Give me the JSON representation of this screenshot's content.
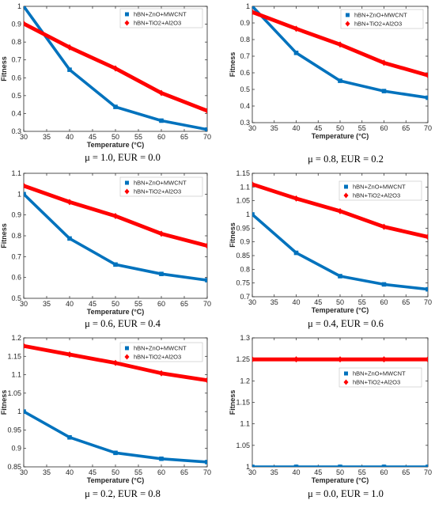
{
  "colors": {
    "series1": "#0072BD",
    "series2": "#FF0000",
    "axis": "#262626"
  },
  "chart_data": [
    {
      "type": "line",
      "caption": "μ = 1.0, EUR = 0.0",
      "xlabel": "Temperature (°C)",
      "ylabel": "Fitness",
      "xlim": [
        30,
        70
      ],
      "ylim": [
        0.3,
        1.0
      ],
      "xticks": [
        "30",
        "35",
        "40",
        "45",
        "50",
        "55",
        "60",
        "65",
        "70"
      ],
      "yticks": [
        "0.3",
        "0.4",
        "0.5",
        "0.6",
        "0.7",
        "0.8",
        "0.9",
        "1"
      ],
      "x": [
        30,
        40,
        50,
        60,
        70
      ],
      "series": [
        {
          "name": "hBN+ZnO+MWCNT",
          "values": [
            1.0,
            0.645,
            0.437,
            0.36,
            0.31
          ]
        },
        {
          "name": "hBN+TiO2+Al2O3",
          "values": [
            0.903,
            0.77,
            0.652,
            0.515,
            0.415
          ]
        }
      ],
      "legend": "top-right",
      "grid": false
    },
    {
      "type": "line",
      "caption": "μ = 0.8, EUR = 0.2",
      "xlabel": "Temperature (°C)",
      "ylabel": "Fitness",
      "xlim": [
        30,
        70
      ],
      "ylim": [
        0.3,
        1.0
      ],
      "xticks": [
        "30",
        "35",
        "40",
        "45",
        "50",
        "55",
        "60",
        "65",
        "70"
      ],
      "yticks": [
        "0.3",
        "0.4",
        "0.5",
        "0.6",
        "0.7",
        "0.8",
        "0.9",
        "1"
      ],
      "x": [
        30,
        40,
        50,
        60,
        70
      ],
      "series": [
        {
          "name": "hBN+ZnO+MWCNT",
          "values": [
            1.0,
            0.72,
            0.552,
            0.49,
            0.45
          ]
        },
        {
          "name": "hBN+TiO2+Al2O3",
          "values": [
            0.965,
            0.865,
            0.77,
            0.66,
            0.585
          ]
        }
      ],
      "legend": "top-right",
      "grid": false
    },
    {
      "type": "line",
      "caption": "μ = 0.6, EUR = 0.4",
      "xlabel": "Temperature (°C)",
      "ylabel": "Fitness",
      "xlim": [
        30,
        70
      ],
      "ylim": [
        0.5,
        1.1
      ],
      "xticks": [
        "30",
        "35",
        "40",
        "45",
        "50",
        "55",
        "60",
        "65",
        "70"
      ],
      "yticks": [
        "0.5",
        "0.6",
        "0.7",
        "0.8",
        "0.9",
        "1",
        "1.1"
      ],
      "x": [
        30,
        40,
        50,
        60,
        70
      ],
      "series": [
        {
          "name": "hBN+ZnO+MWCNT",
          "values": [
            1.0,
            0.787,
            0.662,
            0.617,
            0.587
          ]
        },
        {
          "name": "hBN+TiO2+Al2O3",
          "values": [
            1.04,
            0.962,
            0.895,
            0.81,
            0.752
          ]
        }
      ],
      "legend": "top-right",
      "grid": false
    },
    {
      "type": "line",
      "caption": "μ = 0.4, EUR = 0.6",
      "xlabel": "Temperature (°C)",
      "ylabel": "Fitness",
      "xlim": [
        30,
        70
      ],
      "ylim": [
        0.7,
        1.15
      ],
      "xticks": [
        "30",
        "35",
        "40",
        "45",
        "50",
        "55",
        "60",
        "65",
        "70"
      ],
      "yticks": [
        "0.7",
        "0.75",
        "0.8",
        "0.85",
        "0.9",
        "0.95",
        "1",
        "1.05",
        "1.1",
        "1.15"
      ],
      "x": [
        30,
        40,
        50,
        60,
        70
      ],
      "series": [
        {
          "name": "hBN+ZnO+MWCNT",
          "values": [
            1.0,
            0.86,
            0.775,
            0.745,
            0.727
          ]
        },
        {
          "name": "hBN+TiO2+Al2O3",
          "values": [
            1.11,
            1.058,
            1.012,
            0.955,
            0.918
          ]
        }
      ],
      "legend": "top-right",
      "grid": false
    },
    {
      "type": "line",
      "caption": "μ = 0.2, EUR = 0.8",
      "xlabel": "Temperature (°C)",
      "ylabel": "Fitness",
      "xlim": [
        30,
        70
      ],
      "ylim": [
        0.85,
        1.2
      ],
      "xticks": [
        "30",
        "35",
        "40",
        "45",
        "50",
        "55",
        "60",
        "65",
        "70"
      ],
      "yticks": [
        "0.85",
        "0.9",
        "0.95",
        "1",
        "1.05",
        "1.1",
        "1.15",
        "1.2"
      ],
      "x": [
        30,
        40,
        50,
        60,
        70
      ],
      "series": [
        {
          "name": "hBN+ZnO+MWCNT",
          "values": [
            1.0,
            0.93,
            0.888,
            0.872,
            0.863
          ]
        },
        {
          "name": "hBN+TiO2+Al2O3",
          "values": [
            1.178,
            1.155,
            1.132,
            1.104,
            1.085
          ]
        }
      ],
      "legend": "top-right",
      "grid": false
    },
    {
      "type": "line",
      "caption": "μ = 0.0, EUR = 1.0",
      "xlabel": "Temperature (°C)",
      "ylabel": "Fitness",
      "xlim": [
        30,
        70
      ],
      "ylim": [
        1.0,
        1.3
      ],
      "xticks": [
        "30",
        "35",
        "40",
        "45",
        "50",
        "55",
        "60",
        "65",
        "70"
      ],
      "yticks": [
        "1",
        "1.05",
        "1.1",
        "1.15",
        "1.2",
        "1.25",
        "1.3"
      ],
      "x": [
        30,
        40,
        50,
        60,
        70
      ],
      "series": [
        {
          "name": "hBN+ZnO+MWCNT",
          "values": [
            1.0,
            1.0,
            1.0,
            1.0,
            1.0
          ]
        },
        {
          "name": "hBN+TiO2+Al2O3",
          "values": [
            1.25,
            1.25,
            1.25,
            1.25,
            1.25
          ]
        }
      ],
      "legend": "center-right",
      "grid": false
    }
  ]
}
